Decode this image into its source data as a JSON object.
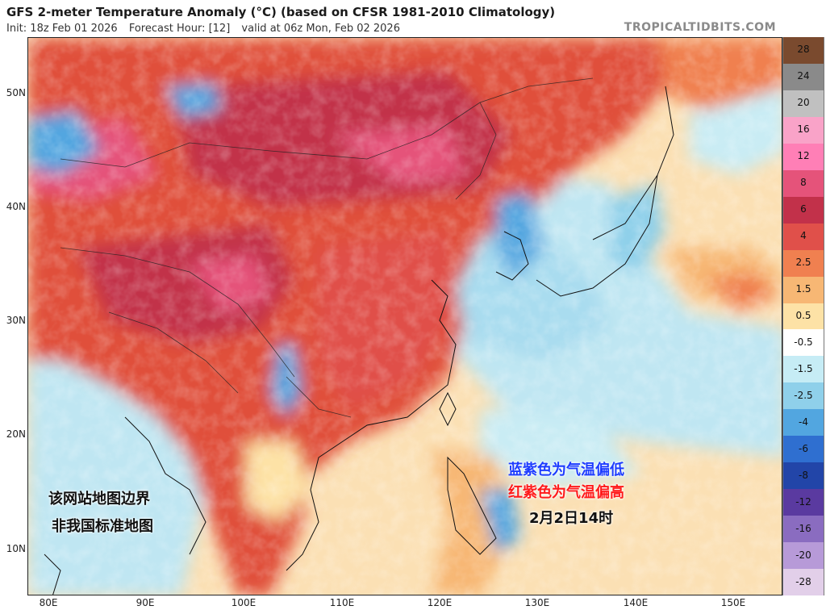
{
  "header": {
    "title": "GFS 2-meter Temperature Anomaly (°C) (based on CFSR 1981-2010 Climatology)",
    "init": "Init: 18z Feb 01 2026",
    "forecast_hour": "Forecast Hour: [12]",
    "valid": "valid at 06z Mon, Feb 02 2026",
    "brand": "TROPICALTIDBITS.COM"
  },
  "axes": {
    "lat_labels": [
      "50N",
      "40N",
      "30N",
      "20N",
      "10N"
    ],
    "lon_labels": [
      "80E",
      "90E",
      "100E",
      "110E",
      "120E",
      "130E",
      "140E",
      "150E"
    ]
  },
  "colorbar": {
    "labels": [
      "28",
      "24",
      "20",
      "16",
      "12",
      "8",
      "6",
      "4",
      "2.5",
      "1.5",
      "0.5",
      "-0.5",
      "-1.5",
      "-2.5",
      "-4",
      "-6",
      "-8",
      "-12",
      "-16",
      "-20",
      "-28"
    ],
    "colors": [
      "#7a4a2e",
      "#8a8a8a",
      "#c0c0c0",
      "#f9a3c8",
      "#ff7fb6",
      "#e5537a",
      "#c2314a",
      "#e0504a",
      "#f08050",
      "#f7b774",
      "#fde2a6",
      "#ffffff",
      "#c6ecf5",
      "#8fd0ea",
      "#52a6e0",
      "#2f6fd0",
      "#2245a8",
      "#5a3aa0",
      "#8a6cc0",
      "#b79ad8",
      "#e2cfe9"
    ]
  },
  "annotations": {
    "left_line1": "该网站地图边界",
    "left_line2": "非我国标准地图",
    "legend_blue": "蓝紫色为气温偏低",
    "legend_red": "红紫色为气温偏高",
    "time": "2月2日14时"
  }
}
